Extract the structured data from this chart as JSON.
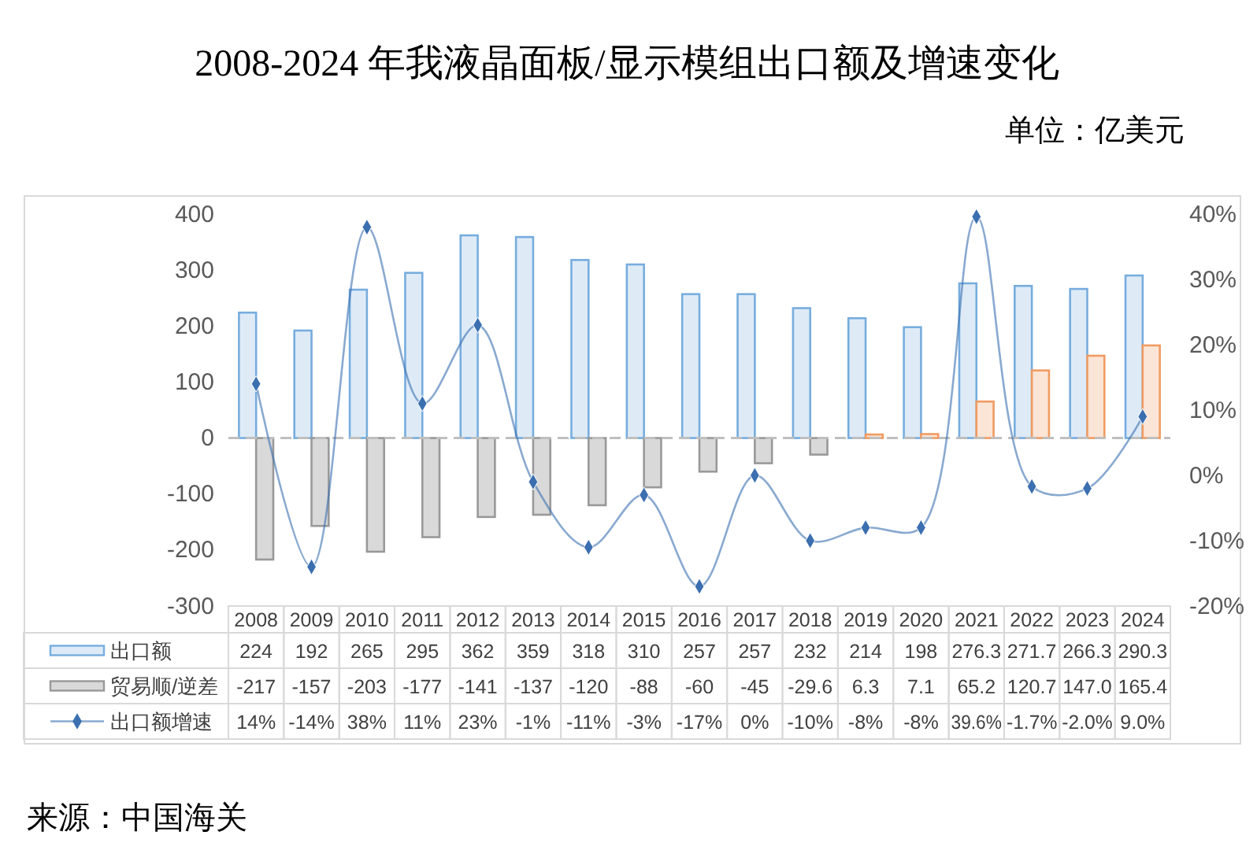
{
  "chart_data": {
    "type": "bar",
    "title": "2008-2024 年我液晶面板/显示模组出口额及增速变化",
    "categories": [
      "2008",
      "2009",
      "2010",
      "2011",
      "2012",
      "2013",
      "2014",
      "2015",
      "2016",
      "2017",
      "2018",
      "2019",
      "2020",
      "2021",
      "2022",
      "2023",
      "2024"
    ],
    "series": [
      {
        "name": "出口额",
        "color": "#deebf7",
        "values": [
          224,
          192,
          265,
          295,
          362,
          359,
          318,
          310,
          257,
          257,
          232,
          214,
          198,
          276.3,
          271.7,
          266.3,
          290.3
        ],
        "value_labels": [
          "224",
          "192",
          "265",
          "295",
          "362",
          "359",
          "318",
          "310",
          "257",
          "257",
          "232",
          "214",
          "198",
          "276.3",
          "271.7",
          "266.3",
          "290.3"
        ]
      },
      {
        "name": "贸易顺/逆差",
        "color": "#d9d9d9",
        "colors": [
          "#d9d9d9",
          "#d9d9d9",
          "#d9d9d9",
          "#d9d9d9",
          "#d9d9d9",
          "#d9d9d9",
          "#d9d9d9",
          "#d9d9d9",
          "#d9d9d9",
          "#d9d9d9",
          "#d9d9d9",
          "#fbe5d6",
          "#fbe5d6",
          "#fbe5d6",
          "#fbe5d6",
          "#fbe5d6",
          "#fbe5d6"
        ],
        "values": [
          -217,
          -157,
          -203,
          -177,
          -141,
          -137,
          -120,
          -88,
          -60,
          -45,
          -29.6,
          6.3,
          7.1,
          65.2,
          120.7,
          147.0,
          165.4
        ],
        "value_labels": [
          "-217",
          "-157",
          "-203",
          "-177",
          "-141",
          "-137",
          "-120",
          "-88",
          "-60",
          "-45",
          "-29.6",
          "6.3",
          "7.1",
          "65.2",
          "120.7",
          "147.0",
          "165.4"
        ]
      },
      {
        "name": "出口额增速",
        "type": "line",
        "axis": "y2",
        "color": "#3b6fb0",
        "marker": "diamond",
        "values": [
          14,
          -14,
          38,
          11,
          23,
          -1,
          -11,
          -3,
          -17,
          0,
          -10,
          -8,
          -8,
          39.6,
          -1.7,
          -2.0,
          9.0
        ],
        "value_labels": [
          "14%",
          "-14%",
          "38%",
          "11%",
          "23%",
          "-1%",
          "-11%",
          "-3%",
          "-17%",
          "0%",
          "-10%",
          "-8%",
          "-8%",
          "39.6%",
          "-1.7%",
          "-2.0%",
          "9.0%"
        ]
      }
    ],
    "ylim": [
      -300,
      400
    ],
    "yticks": [
      -300,
      -200,
      -100,
      0,
      100,
      200,
      300,
      400
    ],
    "y2lim": [
      -20,
      40
    ],
    "y2ticks": [
      {
        "value": -20,
        "label": "-20%"
      },
      {
        "value": -10,
        "label": "-10%"
      },
      {
        "value": 0,
        "label": "0%"
      },
      {
        "value": 10,
        "label": "10%"
      },
      {
        "value": 20,
        "label": "20%"
      },
      {
        "value": 30,
        "label": "30%"
      },
      {
        "value": 40,
        "label": "40%"
      }
    ],
    "legend": "bottom",
    "annotations": [
      "单位：亿美元",
      "来源：中国海关"
    ]
  }
}
